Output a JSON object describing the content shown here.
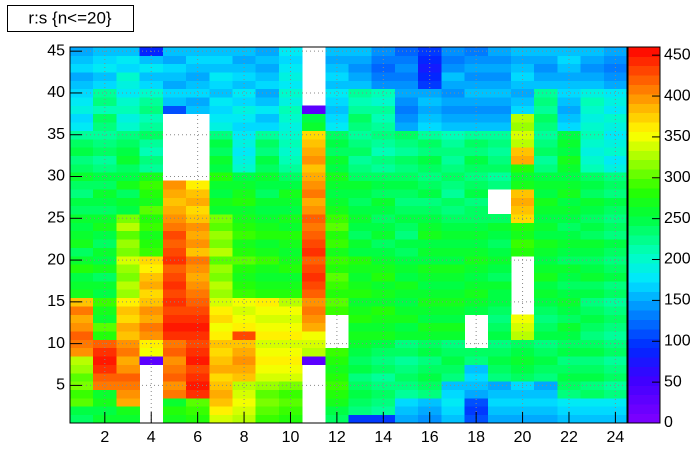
{
  "chart_data": {
    "type": "heatmap",
    "title": "r:s {n<=20}",
    "x": [
      1,
      2,
      3,
      4,
      5,
      6,
      7,
      8,
      9,
      10,
      11,
      12,
      13,
      14,
      15,
      16,
      17,
      18,
      19,
      20,
      21,
      22,
      23,
      24
    ],
    "y": [
      1,
      2,
      3,
      4,
      5,
      6,
      7,
      8,
      9,
      10,
      11,
      12,
      13,
      14,
      15,
      16,
      17,
      18,
      19,
      20,
      21,
      22,
      23,
      24,
      25,
      26,
      27,
      28,
      29,
      30,
      31,
      32,
      33,
      34,
      35,
      36,
      37,
      38,
      39,
      40,
      41,
      42,
      43,
      44,
      45
    ],
    "xlim": [
      0.5,
      24.5
    ],
    "ylim": [
      0.5,
      45.5
    ],
    "zlim": [
      0,
      460
    ],
    "xticks": [
      2,
      4,
      6,
      8,
      10,
      12,
      14,
      16,
      18,
      20,
      22,
      24
    ],
    "yticks": [
      5,
      10,
      15,
      20,
      25,
      30,
      35,
      40,
      45
    ],
    "zticks": [
      0,
      50,
      100,
      150,
      200,
      250,
      300,
      350,
      400,
      450
    ],
    "grid": true,
    "z": [
      [
        240,
        250,
        300,
        290,
        310,
        300,
        320,
        330,
        400,
        410,
        420,
        400,
        390,
        410,
        380,
        270,
        260,
        250,
        280,
        260,
        240,
        270,
        260,
        250,
        260,
        240,
        250,
        230,
        240,
        260,
        240,
        230,
        250,
        240,
        220,
        180,
        170,
        190,
        180,
        170,
        160,
        150,
        170,
        160,
        150
      ],
      [
        260,
        250,
        270,
        260,
        410,
        420,
        440,
        450,
        440,
        420,
        280,
        300,
        260,
        270,
        290,
        250,
        260,
        240,
        270,
        250,
        260,
        240,
        250,
        270,
        260,
        240,
        250,
        260,
        240,
        250,
        230,
        220,
        240,
        230,
        220,
        230,
        240,
        210,
        230,
        220,
        170,
        160,
        180,
        170,
        160
      ],
      [
        260,
        270,
        390,
        400,
        410,
        420,
        400,
        390,
        410,
        400,
        380,
        390,
        370,
        380,
        360,
        320,
        330,
        310,
        320,
        340,
        310,
        320,
        300,
        330,
        310,
        250,
        260,
        240,
        270,
        250,
        240,
        260,
        250,
        240,
        230,
        200,
        190,
        210,
        200,
        180,
        190,
        200,
        170,
        180,
        160
      ],
      [
        null,
        null,
        null,
        null,
        null,
        null,
        null,
        30,
        350,
        360,
        400,
        410,
        390,
        400,
        380,
        370,
        390,
        380,
        360,
        370,
        290,
        280,
        270,
        290,
        280,
        300,
        270,
        280,
        290,
        270,
        220,
        230,
        210,
        220,
        240,
        220,
        210,
        230,
        220,
        200,
        170,
        160,
        180,
        160,
        90
      ],
      [
        270,
        280,
        260,
        410,
        400,
        420,
        410,
        400,
        420,
        410,
        440,
        450,
        440,
        430,
        440,
        430,
        440,
        430,
        420,
        440,
        430,
        420,
        430,
        410,
        400,
        390,
        380,
        390,
        400,
        null,
        null,
        null,
        null,
        null,
        null,
        null,
        null,
        110,
        160,
        170,
        150,
        160,
        170,
        150,
        160
      ],
      [
        280,
        290,
        300,
        440,
        450,
        440,
        430,
        450,
        440,
        430,
        440,
        450,
        440,
        430,
        420,
        410,
        400,
        390,
        400,
        410,
        380,
        400,
        390,
        400,
        380,
        370,
        390,
        380,
        360,
        null,
        null,
        null,
        null,
        null,
        null,
        null,
        null,
        160,
        150,
        170,
        160,
        150,
        160,
        170,
        160
      ],
      [
        340,
        360,
        380,
        390,
        380,
        370,
        390,
        380,
        370,
        380,
        360,
        350,
        370,
        360,
        340,
        320,
        330,
        310,
        320,
        300,
        330,
        310,
        320,
        300,
        310,
        260,
        270,
        250,
        260,
        280,
        250,
        260,
        240,
        250,
        230,
        190,
        180,
        170,
        180,
        160,
        170,
        180,
        160,
        170,
        160
      ],
      [
        330,
        340,
        350,
        340,
        330,
        380,
        390,
        400,
        390,
        380,
        430,
        360,
        350,
        340,
        350,
        290,
        280,
        270,
        280,
        300,
        280,
        270,
        290,
        280,
        270,
        260,
        280,
        270,
        260,
        250,
        200,
        190,
        180,
        190,
        180,
        170,
        180,
        190,
        170,
        180,
        160,
        170,
        160,
        150,
        160
      ],
      [
        290,
        300,
        310,
        300,
        320,
        340,
        350,
        360,
        350,
        340,
        360,
        350,
        340,
        350,
        360,
        280,
        270,
        260,
        270,
        290,
        270,
        260,
        280,
        270,
        260,
        250,
        260,
        240,
        250,
        260,
        240,
        250,
        230,
        240,
        220,
        170,
        160,
        180,
        160,
        150,
        170,
        160,
        150,
        160,
        150
      ],
      [
        280,
        290,
        300,
        290,
        310,
        340,
        350,
        360,
        350,
        340,
        360,
        350,
        340,
        350,
        330,
        280,
        270,
        260,
        280,
        270,
        260,
        270,
        280,
        260,
        270,
        250,
        260,
        270,
        250,
        240,
        220,
        210,
        200,
        210,
        200,
        190,
        200,
        210,
        190,
        200,
        180,
        190,
        180,
        170,
        180
      ],
      [
        null,
        null,
        null,
        null,
        null,
        null,
        null,
        30,
        330,
        340,
        350,
        390,
        400,
        410,
        400,
        420,
        430,
        440,
        430,
        420,
        440,
        430,
        420,
        410,
        420,
        400,
        390,
        410,
        400,
        390,
        380,
        400,
        390,
        380,
        370,
        260,
        250,
        30,
        null,
        null,
        null,
        null,
        null,
        null,
        null
      ],
      [
        240,
        250,
        270,
        280,
        290,
        280,
        270,
        280,
        290,
        null,
        null,
        null,
        null,
        290,
        300,
        280,
        290,
        300,
        280,
        290,
        270,
        290,
        280,
        300,
        290,
        270,
        260,
        250,
        260,
        270,
        250,
        260,
        240,
        250,
        240,
        180,
        170,
        160,
        170,
        180,
        160,
        170,
        160,
        150,
        160
      ],
      [
        100,
        230,
        240,
        250,
        240,
        230,
        250,
        240,
        250,
        260,
        270,
        260,
        280,
        270,
        260,
        280,
        270,
        260,
        270,
        280,
        250,
        260,
        240,
        250,
        260,
        250,
        240,
        250,
        260,
        240,
        230,
        220,
        240,
        230,
        220,
        230,
        240,
        220,
        210,
        220,
        160,
        150,
        140,
        150,
        160
      ],
      [
        100,
        220,
        230,
        240,
        230,
        220,
        240,
        230,
        240,
        250,
        270,
        260,
        270,
        280,
        260,
        270,
        260,
        280,
        270,
        260,
        250,
        240,
        260,
        250,
        240,
        250,
        260,
        240,
        250,
        240,
        220,
        230,
        210,
        220,
        230,
        220,
        210,
        220,
        200,
        210,
        140,
        130,
        120,
        130,
        140
      ],
      [
        150,
        160,
        170,
        220,
        230,
        240,
        230,
        220,
        240,
        230,
        260,
        250,
        270,
        260,
        250,
        260,
        270,
        250,
        260,
        250,
        240,
        250,
        230,
        240,
        250,
        240,
        230,
        240,
        250,
        240,
        230,
        240,
        220,
        230,
        240,
        150,
        140,
        130,
        140,
        150,
        140,
        130,
        140,
        130,
        120
      ],
      [
        140,
        150,
        160,
        230,
        240,
        250,
        240,
        230,
        250,
        240,
        260,
        270,
        250,
        260,
        270,
        260,
        250,
        260,
        270,
        250,
        260,
        250,
        270,
        260,
        250,
        240,
        230,
        250,
        240,
        230,
        240,
        250,
        230,
        240,
        220,
        170,
        160,
        150,
        160,
        150,
        100,
        90,
        80,
        90,
        100
      ],
      [
        160,
        170,
        180,
        170,
        160,
        230,
        240,
        250,
        240,
        230,
        260,
        270,
        250,
        260,
        270,
        260,
        250,
        260,
        270,
        250,
        260,
        250,
        260,
        250,
        240,
        230,
        240,
        220,
        230,
        240,
        230,
        220,
        230,
        220,
        210,
        160,
        150,
        140,
        150,
        140,
        150,
        160,
        140,
        130,
        140
      ],
      [
        110,
        100,
        110,
        150,
        160,
        170,
        160,
        230,
        240,
        null,
        null,
        null,
        null,
        250,
        260,
        270,
        260,
        250,
        260,
        270,
        260,
        250,
        260,
        250,
        240,
        240,
        230,
        250,
        240,
        230,
        240,
        250,
        230,
        240,
        220,
        160,
        150,
        140,
        150,
        160,
        150,
        140,
        150,
        140,
        130
      ],
      [
        150,
        160,
        170,
        160,
        150,
        230,
        240,
        250,
        240,
        230,
        250,
        240,
        230,
        240,
        250,
        250,
        260,
        240,
        250,
        260,
        250,
        240,
        250,
        260,
        240,
        null,
        null,
        null,
        230,
        220,
        240,
        230,
        220,
        230,
        220,
        160,
        150,
        140,
        150,
        160,
        150,
        140,
        150,
        140,
        150
      ],
      [
        150,
        160,
        170,
        160,
        170,
        240,
        250,
        260,
        250,
        240,
        330,
        340,
        350,
        null,
        null,
        null,
        null,
        null,
        null,
        null,
        280,
        290,
        270,
        280,
        370,
        380,
        390,
        380,
        270,
        260,
        280,
        390,
        380,
        330,
        340,
        320,
        330,
        170,
        160,
        150,
        160,
        170,
        160,
        150,
        160
      ],
      [
        150,
        160,
        170,
        160,
        150,
        230,
        240,
        250,
        240,
        230,
        250,
        240,
        230,
        240,
        250,
        260,
        250,
        270,
        260,
        250,
        260,
        270,
        250,
        260,
        250,
        260,
        270,
        250,
        260,
        250,
        230,
        220,
        240,
        230,
        220,
        230,
        240,
        220,
        230,
        220,
        160,
        150,
        140,
        150,
        160
      ],
      [
        160,
        170,
        180,
        230,
        240,
        250,
        240,
        230,
        250,
        240,
        250,
        260,
        240,
        250,
        260,
        250,
        240,
        250,
        260,
        240,
        250,
        260,
        250,
        240,
        250,
        260,
        250,
        270,
        260,
        250,
        260,
        270,
        250,
        260,
        250,
        170,
        160,
        150,
        160,
        170,
        160,
        150,
        160,
        170,
        160
      ],
      [
        160,
        170,
        180,
        240,
        230,
        250,
        240,
        230,
        250,
        240,
        230,
        240,
        250,
        240,
        230,
        250,
        240,
        260,
        250,
        240,
        250,
        260,
        240,
        250,
        240,
        250,
        260,
        240,
        250,
        240,
        210,
        200,
        190,
        200,
        210,
        200,
        190,
        200,
        210,
        190,
        160,
        150,
        140,
        150,
        160
      ],
      [
        160,
        170,
        180,
        230,
        220,
        240,
        230,
        220,
        240,
        230,
        220,
        230,
        240,
        230,
        220,
        240,
        230,
        250,
        240,
        230,
        240,
        250,
        230,
        240,
        230,
        240,
        250,
        230,
        240,
        230,
        190,
        180,
        200,
        190,
        180,
        190,
        200,
        180,
        190,
        180,
        150,
        140,
        130,
        140,
        150
      ]
    ]
  }
}
